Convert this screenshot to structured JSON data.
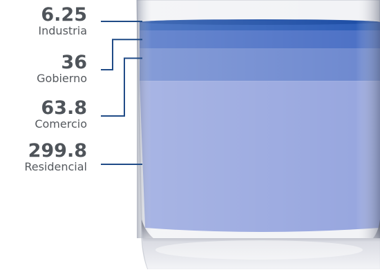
{
  "chart_data": {
    "type": "bar",
    "categories": [
      "Industria",
      "Gobierno",
      "Comercio",
      "Residencial"
    ],
    "values": [
      6.25,
      36,
      63.8,
      299.8
    ],
    "value_labels": [
      "6.25",
      "36",
      "63.8",
      "299.8"
    ],
    "colors": [
      "#2f5fb8",
      "#4e72c6",
      "#6f8ad0",
      "#98a7df"
    ],
    "leader_color": "#1f4a86",
    "stacked_in": "glass"
  }
}
